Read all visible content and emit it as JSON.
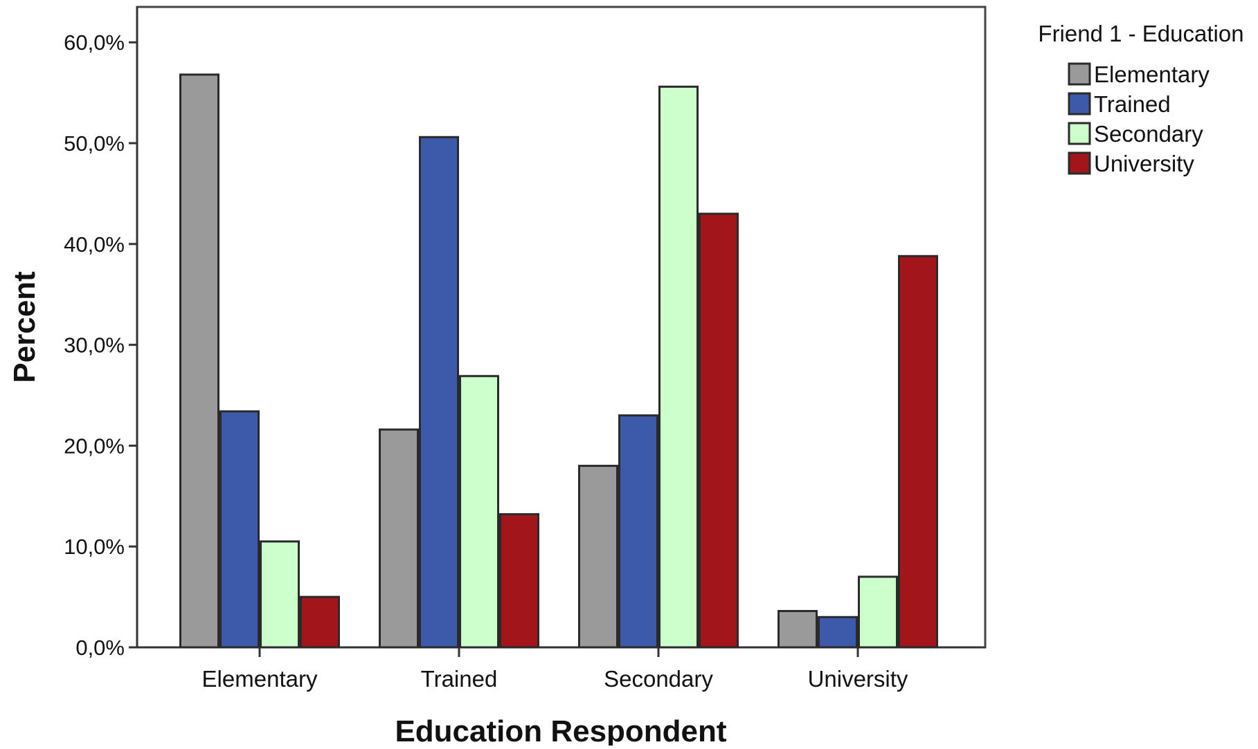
{
  "chart_data": {
    "type": "bar",
    "xlabel": "Education Respondent",
    "ylabel": "Percent",
    "ylim": [
      0,
      63
    ],
    "yticks": [
      0,
      10,
      20,
      30,
      40,
      50,
      60
    ],
    "ytick_labels": [
      "0,0%",
      "10,0%",
      "20,0%",
      "30,0%",
      "40,0%",
      "50,0%",
      "60,0%"
    ],
    "categories": [
      "Elementary",
      "Trained",
      "Secondary",
      "University"
    ],
    "legend_title": "Friend 1 - Education",
    "legend_position": "top-right, outside plot",
    "grid": false,
    "series": [
      {
        "name": "Elementary",
        "color": "#9a9a9a",
        "values": [
          56.8,
          21.6,
          18.0,
          3.6
        ]
      },
      {
        "name": "Trained",
        "color": "#3d59aa",
        "values": [
          23.4,
          50.6,
          23.0,
          3.0
        ]
      },
      {
        "name": "Secondary",
        "color": "#ccffcc",
        "values": [
          10.5,
          26.9,
          55.6,
          7.0
        ]
      },
      {
        "name": "University",
        "color": "#a1151b",
        "values": [
          5.0,
          13.2,
          43.0,
          38.8
        ]
      }
    ]
  }
}
